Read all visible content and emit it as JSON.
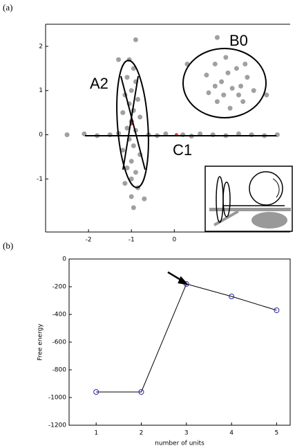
{
  "chart_data": [
    {
      "type": "scatter",
      "panel_label": "(a)",
      "xlim": [
        -3,
        2.7
      ],
      "ylim": [
        -2.2,
        2.5
      ],
      "xticks": [
        -2,
        -1,
        0
      ],
      "yticks": [
        -1,
        0,
        1,
        2
      ],
      "annotations": [
        "A2",
        "B0",
        "C1"
      ],
      "series": [
        {
          "color": "#a0a0a0",
          "x": [
            -1.05,
            -0.95,
            -1.1,
            -0.9,
            -1.0,
            -1.15,
            -0.85,
            -1.05,
            -0.95,
            -1.2,
            -0.8,
            -1.0,
            -1.1,
            -0.9,
            -1.05,
            -0.95,
            -1.2,
            -0.8,
            -1.0,
            -1.1,
            -0.9,
            -1.0,
            -1.15,
            -0.85,
            -1.0,
            -0.95,
            -0.9,
            -1.3,
            -0.7,
            0.75,
            0.95,
            1.2,
            1.45,
            1.7,
            1.85,
            1.6,
            1.3,
            1.0,
            0.8,
            1.1,
            1.35,
            1.55,
            1.25,
            0.95,
            1.5,
            1.15,
            1.0,
            0.3,
            2.15,
            1.65,
            -2.5,
            -2.1,
            -1.8,
            -1.5,
            -1.3,
            -0.6,
            -0.4,
            -0.2,
            0.2,
            0.4,
            0.6,
            0.9,
            1.2,
            1.5,
            1.8,
            2.1,
            2.4
          ],
          "y": [
            1.7,
            1.5,
            1.3,
            1.2,
            1.0,
            0.9,
            0.8,
            0.7,
            0.55,
            0.5,
            0.4,
            0.3,
            0.15,
            0.1,
            -0.1,
            -0.25,
            -0.35,
            -0.45,
            -0.6,
            -0.75,
            -0.85,
            -1.0,
            -1.1,
            -1.2,
            -1.4,
            -1.65,
            2.15,
            1.7,
            -1.45,
            1.35,
            1.6,
            1.75,
            1.5,
            1.3,
            1.0,
            0.75,
            0.6,
            0.75,
            0.95,
            1.2,
            1.05,
            1.1,
            1.4,
            1.1,
            0.9,
            0.9,
            2.2,
            1.6,
            0.9,
            1.6,
            0,
            0.02,
            -0.02,
            0,
            0.03,
            0,
            -0.02,
            0.02,
            0,
            -0.03,
            0.02,
            0,
            -0.02,
            0.02,
            0,
            -0.02,
            0
          ]
        },
        {
          "color": "#e8403a",
          "x": [
            -1.0,
            0.05
          ],
          "y": [
            0.25,
            0
          ]
        }
      ]
    },
    {
      "type": "line",
      "panel_label": "(b)",
      "xlabel": "number of units",
      "ylabel": "Free energy",
      "x": [
        1,
        2,
        3,
        4,
        5
      ],
      "xlim": [
        0.4,
        5.3
      ],
      "xticks": [
        1,
        2,
        3,
        4,
        5
      ],
      "ylim": [
        -1200,
        0
      ],
      "yticks": [
        -1200,
        -1000,
        -800,
        -600,
        -400,
        -200,
        0
      ],
      "values": [
        -960,
        -960,
        -180,
        -270,
        -370
      ],
      "line_color": "#000000",
      "marker_color": "#2a2aa8"
    }
  ]
}
